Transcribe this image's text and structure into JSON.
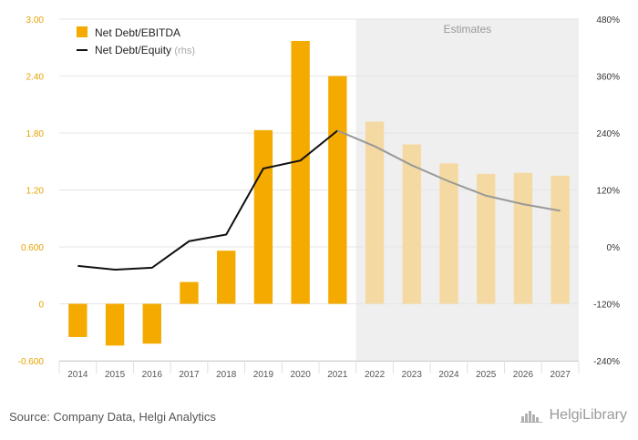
{
  "chart_data": {
    "type": "bar+line",
    "categories": [
      "2014",
      "2015",
      "2016",
      "2017",
      "2018",
      "2019",
      "2020",
      "2021",
      "2022",
      "2023",
      "2024",
      "2025",
      "2026",
      "2027"
    ],
    "series": [
      {
        "name": "Net Debt/EBITDA",
        "type": "bar",
        "axis": "left",
        "values": [
          -0.35,
          -0.44,
          -0.42,
          0.23,
          0.56,
          1.83,
          2.77,
          2.4,
          1.92,
          1.68,
          1.48,
          1.37,
          1.38,
          1.35
        ]
      },
      {
        "name": "Net Debt/Equity",
        "type": "line",
        "axis": "right",
        "values": [
          -40,
          -48,
          -44,
          12,
          26,
          165,
          182,
          245,
          212,
          172,
          138,
          108,
          90,
          76
        ]
      }
    ],
    "estimates_from_index": 8,
    "estimates_label": "Estimates",
    "rhs_note": "(rhs)",
    "left_axis": {
      "min": -0.6,
      "max": 3.0,
      "ticks": [
        "-0.600",
        "0",
        "0.600",
        "1.20",
        "1.80",
        "2.40",
        "3.00"
      ]
    },
    "right_axis": {
      "min": -240,
      "max": 480,
      "ticks": [
        "-240%",
        "-120%",
        "0%",
        "120%",
        "240%",
        "360%",
        "480%"
      ]
    },
    "legend_position": "top-left",
    "colors": {
      "bar": "#f5aa00",
      "bar_estimate": "#f5d9a3",
      "line": "#111111",
      "line_estimate": "#999999",
      "estimate_band": "#efefef",
      "left_tick": "#e8a200",
      "right_tick": "#333333"
    }
  },
  "footer": {
    "source": "Source: Company Data, Helgi Analytics",
    "brand": "HelgiLibrary"
  },
  "icons": {
    "brand_logo": "helgi-library-logo-icon"
  }
}
